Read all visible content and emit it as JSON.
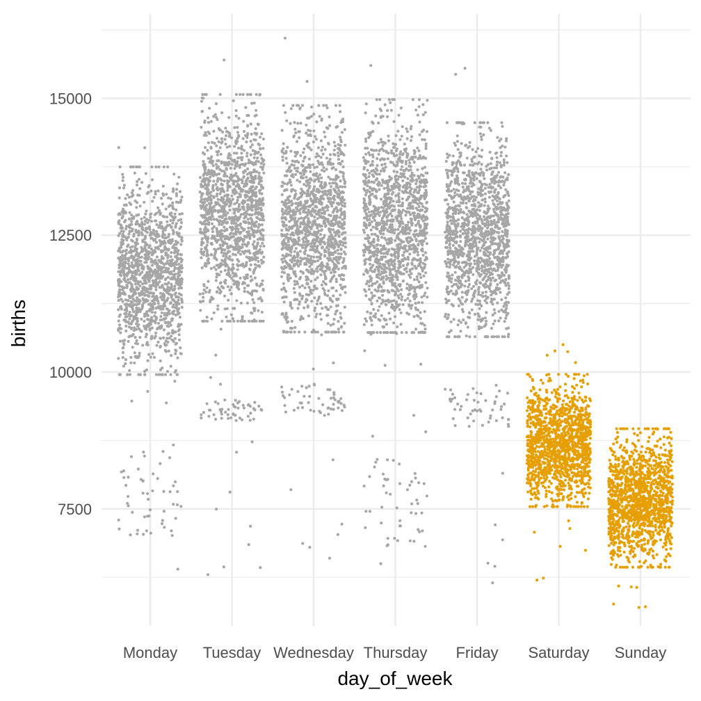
{
  "chart_data": {
    "type": "scatter",
    "subtype": "jitter-strip",
    "title": "",
    "xlabel": "day_of_week",
    "ylabel": "births",
    "categories": [
      "Monday",
      "Tuesday",
      "Wednesday",
      "Thursday",
      "Friday",
      "Saturday",
      "Sunday"
    ],
    "ylim": [
      5600,
      16300
    ],
    "y_ticks": [
      {
        "value": 7500,
        "label": "7500"
      },
      {
        "value": 10000,
        "label": "10000"
      },
      {
        "value": 12500,
        "label": "12500"
      },
      {
        "value": 15000,
        "label": "15000"
      }
    ],
    "y_minor_ticks": [
      6250,
      8750,
      11250,
      13750,
      16250
    ],
    "grid": true,
    "legend": "none",
    "colors": {
      "weekday": "#a6a6a6",
      "weekend": "#e69f00",
      "grid": "#ebebeb",
      "background": "#ffffff"
    },
    "series": [
      {
        "category": "Monday",
        "group": "weekday",
        "points": 1400,
        "main_range": [
          10200,
          13500
        ],
        "center": 11800,
        "low_cluster_range": [
          7000,
          8600
        ],
        "min": 6400,
        "max": 14100
      },
      {
        "category": "Tuesday",
        "group": "weekday",
        "points": 1400,
        "main_range": [
          11200,
          14800
        ],
        "center": 12900,
        "low_cluster_range": [
          9100,
          9500
        ],
        "min": 6300,
        "max": 15700
      },
      {
        "category": "Wednesday",
        "group": "weekday",
        "points": 1400,
        "main_range": [
          11000,
          14600
        ],
        "center": 12700,
        "low_cluster_range": [
          9200,
          9800
        ],
        "min": 6600,
        "max": 16100
      },
      {
        "category": "Thursday",
        "group": "weekday",
        "points": 1400,
        "main_range": [
          11000,
          14700
        ],
        "center": 12700,
        "low_cluster_range": [
          6800,
          8500
        ],
        "min": 6500,
        "max": 15600
      },
      {
        "category": "Friday",
        "group": "weekday",
        "points": 1400,
        "main_range": [
          10900,
          14300
        ],
        "center": 12500,
        "low_cluster_range": [
          9000,
          9700
        ],
        "min": 6150,
        "max": 15550
      },
      {
        "category": "Saturday",
        "group": "weekend",
        "points": 1400,
        "main_range": [
          7700,
          9800
        ],
        "center": 8650,
        "min": 6200,
        "max": 10500
      },
      {
        "category": "Sunday",
        "group": "weekend",
        "points": 1400,
        "main_range": [
          6600,
          8800
        ],
        "center": 7650,
        "min": 5700,
        "max": 8900
      }
    ]
  }
}
